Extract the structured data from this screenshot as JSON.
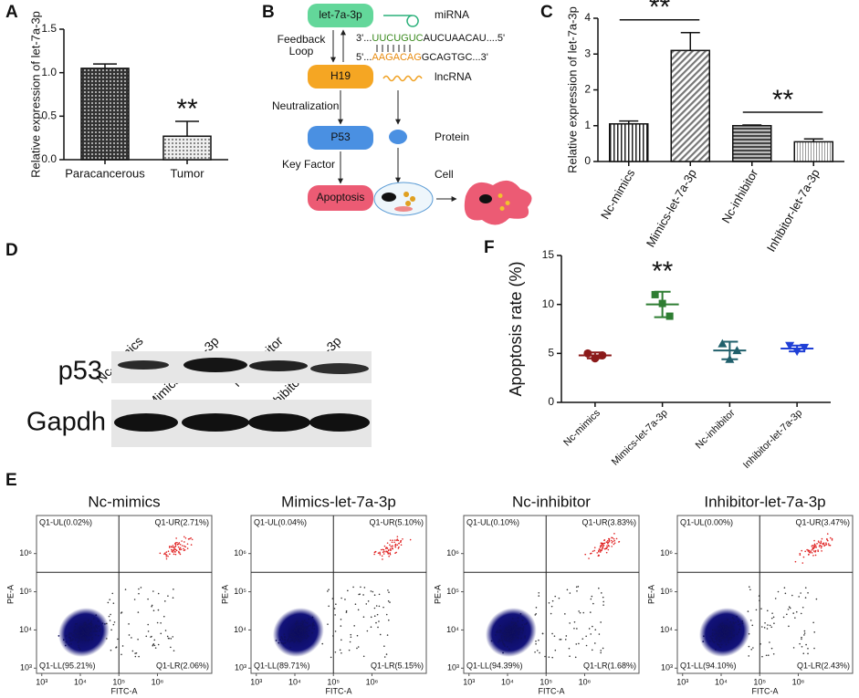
{
  "panel_labels": [
    "A",
    "B",
    "C",
    "D",
    "E",
    "F"
  ],
  "chart_data": [
    {
      "type": "bar",
      "y_label": "Relative expression of let-7a-3p",
      "categories": [
        "Paracancerous",
        "Tumor"
      ],
      "values": [
        1.05,
        0.27
      ],
      "errors": [
        0.05,
        0.17
      ],
      "ylim": [
        0,
        1.5
      ],
      "yticks": [
        {
          "value": 0,
          "label": "0.0"
        },
        {
          "value": 0.5,
          "label": "0.5"
        },
        {
          "value": 1,
          "label": "1.0"
        },
        {
          "value": 1.5,
          "label": "1.5"
        }
      ],
      "annotations": [
        "**"
      ]
    },
    {
      "type": "bar",
      "y_label": "Relative expression of let-7a-3p",
      "categories": [
        "Nc-mimics",
        "Mimics-let-7a-3p",
        "Nc-inhibitor",
        "Inhibitor-let-7a-3p"
      ],
      "values": [
        1.05,
        3.1,
        1.0,
        0.55
      ],
      "errors": [
        0.08,
        0.5,
        0.02,
        0.08
      ],
      "ylim": [
        0,
        4
      ],
      "yticks": [
        0,
        1,
        2,
        3,
        4
      ],
      "annotations": [
        "**",
        "**"
      ]
    },
    {
      "type": "dot",
      "y_label": "Apoptosis rate (%)",
      "categories": [
        "Nc-mimics",
        "Mimics-let-7a-3p",
        "Nc-inhibitor",
        "Inhibitor-let-7a-3p"
      ],
      "points": [
        [
          5.0,
          4.5,
          4.8
        ],
        [
          11.0,
          10.1,
          8.8
        ],
        [
          6.0,
          4.4,
          5.3
        ],
        [
          5.8,
          5.2,
          5.6
        ]
      ],
      "means": [
        4.8,
        10.0,
        5.3,
        5.5
      ],
      "sds": [
        0.3,
        1.3,
        0.9,
        0.3
      ],
      "colors": [
        "#8b1a1a",
        "#2e7d32",
        "#1f5f6b",
        "#1f3fd6"
      ],
      "ylim": [
        0,
        15
      ],
      "yticks": [
        0,
        5,
        10,
        15
      ],
      "annotations": [
        "**"
      ]
    }
  ],
  "diagram": {
    "mirna_box": "let-7a-3p",
    "mirna": "miRNA",
    "feedback_loop": [
      "Feedback",
      "Loop"
    ],
    "seq1": [
      "3'...",
      "UUCUGUC",
      "AUCUAACAU....5'"
    ],
    "seq2": [
      "5'...",
      "AAGACAG",
      "GCAGTGC...3'"
    ],
    "lnc_box": "H19",
    "lncrna": "lncRNA",
    "neutralization": "Neutralization",
    "p53_box": "P53",
    "protein": "Protein",
    "key_factor": "Key Factor",
    "apoptosis_box": "Apoptosis",
    "cell": "Cell"
  },
  "blot": {
    "lanes": [
      "Nc-mimics",
      "Mimics-let-7a-3p",
      "Nc-inhibitor",
      "Inhibitor-let-7a-3p"
    ],
    "rows": [
      "p53",
      "Gapdh"
    ]
  },
  "flow": {
    "x_label": "FITC-A",
    "y_label": "PE-A",
    "ticks": [
      "10³",
      "10⁴",
      "10⁵",
      "10⁶"
    ],
    "plots": [
      {
        "title": "Nc-mimics",
        "quadrants": [
          "Q1-UL(0.02%)",
          "Q1-UR(2.71%)",
          "Q1-LL(95.21%)",
          "Q1-LR(2.06%)"
        ]
      },
      {
        "title": "Mimics-let-7a-3p",
        "quadrants": [
          "Q1-UL(0.04%)",
          "Q1-UR(5.10%)",
          "Q1-LL(89.71%)",
          "Q1-LR(5.15%)"
        ]
      },
      {
        "title": "Nc-inhibitor",
        "quadrants": [
          "Q1-UL(0.10%)",
          "Q1-UR(3.83%)",
          "Q1-LL(94.39%)",
          "Q1-LR(1.68%)"
        ]
      },
      {
        "title": "Inhibitor-let-7a-3p",
        "quadrants": [
          "Q1-UL(0.00%)",
          "Q1-UR(3.47%)",
          "Q1-LL(94.10%)",
          "Q1-LR(2.43%)"
        ]
      }
    ]
  }
}
